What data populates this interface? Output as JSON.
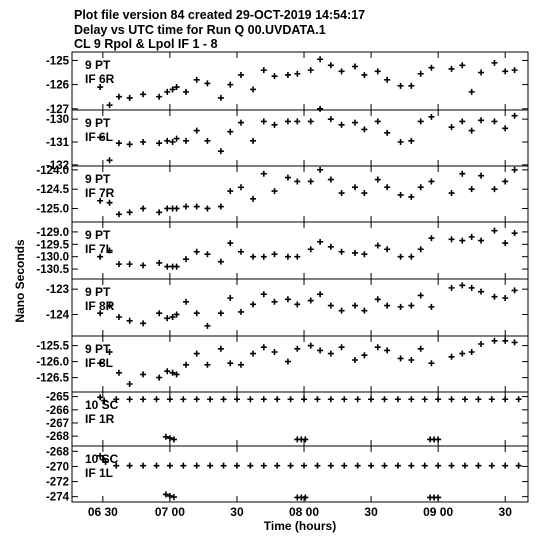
{
  "header": {
    "line1": "Plot file version 84  created 29-OCT-2019 14:54:17",
    "line2": "Delay vs UTC time for Run Q 00.UVDATA.1",
    "line3": "CL 9  Rpol & Lpol  IF 1 - 8"
  },
  "chart_data": {
    "type": "scatter",
    "title": "Delay vs UTC time for Run Q 00.UVDATA.1",
    "xlabel": "Time (hours)",
    "ylabel": "Nano Seconds",
    "x_unit": "hours (UTC)",
    "xlim": [
      6.27,
      9.67
    ],
    "x_ticks": [
      6.5,
      7.0,
      7.5,
      8.0,
      8.5,
      9.0,
      9.5
    ],
    "x_tick_labels": [
      "06 30",
      "07 00",
      "30",
      "08 00",
      "30",
      "09 00",
      "30"
    ],
    "grid": false,
    "panels": [
      {
        "antenna": "9 PT",
        "if": "IF 6R",
        "ylim": [
          -127.05,
          -124.65
        ],
        "y_ticks": [
          -125,
          -126,
          -127
        ],
        "y_tick_labels": [
          "-125",
          "-126",
          "-127"
        ],
        "x": [
          6.48,
          6.55,
          6.62,
          6.7,
          6.8,
          6.92,
          6.98,
          7.02,
          7.05,
          7.12,
          7.2,
          7.28,
          7.38,
          7.45,
          7.53,
          7.62,
          7.7,
          7.78,
          7.88,
          7.95,
          8.05,
          8.12,
          8.2,
          8.28,
          8.38,
          8.45,
          8.55,
          8.62,
          8.72,
          8.8,
          8.87,
          8.95,
          9.1,
          9.18,
          9.25,
          9.32,
          9.42,
          9.5,
          9.57
        ],
        "y": [
          -126.1,
          -126.85,
          -126.5,
          -126.55,
          -126.4,
          -126.5,
          -126.3,
          -126.2,
          -126.1,
          -126.3,
          -125.8,
          -125.95,
          -126.55,
          -126.0,
          -125.6,
          -126.2,
          -125.4,
          -125.65,
          -125.6,
          -125.55,
          -125.4,
          -124.95,
          -125.2,
          -125.45,
          -125.25,
          -125.6,
          -125.45,
          -125.8,
          -126.05,
          -126.05,
          -125.55,
          -125.3,
          -125.35,
          -125.2,
          -126.3,
          -125.5,
          -125.1,
          -125.45,
          -125.4
        ]
      },
      {
        "antenna": "9 PT",
        "if": "IF 6L",
        "ylim": [
          -132.05,
          -129.6
        ],
        "y_ticks": [
          -130,
          -131,
          -132
        ],
        "y_tick_labels": [
          "-130",
          "-131",
          "-132"
        ],
        "x": [
          6.48,
          6.55,
          6.62,
          6.7,
          6.8,
          6.92,
          6.98,
          7.02,
          7.05,
          7.12,
          7.2,
          7.28,
          7.38,
          7.45,
          7.53,
          7.62,
          7.7,
          7.78,
          7.88,
          7.95,
          8.05,
          8.12,
          8.2,
          8.28,
          8.38,
          8.45,
          8.55,
          8.62,
          8.72,
          8.8,
          8.87,
          8.95,
          9.1,
          9.18,
          9.25,
          9.32,
          9.42,
          9.5,
          9.57
        ],
        "y": [
          -130.8,
          -131.8,
          -131.05,
          -131.1,
          -131.0,
          -131.05,
          -130.95,
          -131.0,
          -130.85,
          -130.95,
          -130.5,
          -130.95,
          -131.4,
          -130.55,
          -130.15,
          -130.95,
          -130.1,
          -130.25,
          -130.1,
          -130.1,
          -130.1,
          -129.55,
          -130.0,
          -130.25,
          -130.15,
          -130.45,
          -130.1,
          -130.6,
          -131.0,
          -130.95,
          -130.1,
          -129.9,
          -130.35,
          -130.1,
          -130.5,
          -130.05,
          -130.1,
          -130.4,
          -129.85
        ]
      },
      {
        "antenna": "9 PT",
        "if": "IF 7R",
        "ylim": [
          -125.35,
          -123.9
        ],
        "y_ticks": [
          -124.0,
          -124.5,
          -125.0
        ],
        "y_tick_labels": [
          "-124.0",
          "-124.5",
          "-125.0"
        ],
        "x": [
          6.48,
          6.55,
          6.62,
          6.7,
          6.8,
          6.92,
          6.98,
          7.02,
          7.05,
          7.12,
          7.2,
          7.28,
          7.38,
          7.45,
          7.53,
          7.62,
          7.7,
          7.78,
          7.88,
          7.95,
          8.05,
          8.12,
          8.2,
          8.28,
          8.38,
          8.45,
          8.55,
          8.62,
          8.72,
          8.8,
          8.87,
          8.95,
          9.1,
          9.18,
          9.25,
          9.32,
          9.42,
          9.5,
          9.57
        ],
        "y": [
          -124.8,
          -124.85,
          -125.15,
          -125.1,
          -125.0,
          -125.1,
          -125.0,
          -125.0,
          -125.0,
          -124.95,
          -124.95,
          -125.0,
          -124.95,
          -124.55,
          -124.45,
          -124.75,
          -124.1,
          -124.55,
          -124.2,
          -124.3,
          -124.3,
          -124.0,
          -124.25,
          -124.6,
          -124.45,
          -124.6,
          -124.25,
          -124.45,
          -124.65,
          -124.7,
          -124.45,
          -124.3,
          -124.6,
          -124.1,
          -124.5,
          -124.15,
          -124.5,
          -124.3,
          -124.0
        ]
      },
      {
        "antenna": "9 PT",
        "if": "IF 7L",
        "ylim": [
          -130.9,
          -128.6
        ],
        "y_ticks": [
          -129.0,
          -129.5,
          -130.0,
          -130.5
        ],
        "y_tick_labels": [
          "-129.0",
          "-129.5",
          "-130.0",
          "-130.5"
        ],
        "x": [
          6.48,
          6.55,
          6.62,
          6.7,
          6.8,
          6.92,
          6.98,
          7.02,
          7.05,
          7.12,
          7.2,
          7.28,
          7.38,
          7.45,
          7.53,
          7.62,
          7.7,
          7.78,
          7.88,
          7.95,
          8.05,
          8.12,
          8.2,
          8.28,
          8.38,
          8.45,
          8.55,
          8.62,
          8.72,
          8.8,
          8.87,
          8.95,
          9.1,
          9.18,
          9.25,
          9.32,
          9.42,
          9.5,
          9.57
        ],
        "y": [
          -130.0,
          -129.75,
          -130.3,
          -130.3,
          -130.35,
          -130.25,
          -130.4,
          -130.4,
          -130.4,
          -130.1,
          -129.8,
          -129.9,
          -130.2,
          -129.45,
          -129.8,
          -130.0,
          -130.0,
          -129.9,
          -130.0,
          -130.0,
          -129.7,
          -129.4,
          -129.6,
          -129.8,
          -129.85,
          -129.9,
          -129.55,
          -129.7,
          -130.0,
          -130.0,
          -129.7,
          -129.25,
          -129.3,
          -129.35,
          -129.2,
          -129.35,
          -128.95,
          -129.45,
          -129.05
        ]
      },
      {
        "antenna": "9 PT",
        "if": "IF 8R",
        "ylim": [
          -124.85,
          -122.6
        ],
        "y_ticks": [
          -123,
          -124
        ],
        "y_tick_labels": [
          "-123",
          "-124"
        ],
        "x": [
          6.48,
          6.55,
          6.62,
          6.7,
          6.8,
          6.92,
          6.98,
          7.02,
          7.05,
          7.12,
          7.2,
          7.28,
          7.38,
          7.45,
          7.53,
          7.62,
          7.7,
          7.78,
          7.88,
          7.95,
          8.05,
          8.12,
          8.2,
          8.28,
          8.38,
          8.45,
          8.55,
          8.62,
          8.72,
          8.8,
          8.87,
          8.95,
          9.1,
          9.18,
          9.25,
          9.32,
          9.42,
          9.5,
          9.57
        ],
        "y": [
          -123.95,
          -123.65,
          -124.1,
          -124.25,
          -124.35,
          -123.95,
          -124.15,
          -124.1,
          -124.0,
          -123.5,
          -123.95,
          -124.45,
          -123.95,
          -123.35,
          -123.9,
          -123.6,
          -123.2,
          -123.5,
          -123.4,
          -123.6,
          -123.45,
          -123.2,
          -123.65,
          -123.85,
          -123.65,
          -123.85,
          -123.4,
          -123.65,
          -123.7,
          -123.65,
          -123.25,
          -123.7,
          -122.95,
          -122.85,
          -122.95,
          -123.1,
          -123.3,
          -123.35,
          -123.05
        ]
      },
      {
        "antenna": "9 PT",
        "if": "IF 8L",
        "ylim": [
          -126.95,
          -125.2
        ],
        "y_ticks": [
          -125.5,
          -126.0,
          -126.5
        ],
        "y_tick_labels": [
          "-125.5",
          "-126.0",
          "-126.5"
        ],
        "x": [
          6.48,
          6.55,
          6.62,
          6.7,
          6.8,
          6.92,
          6.98,
          7.02,
          7.05,
          7.12,
          7.2,
          7.28,
          7.38,
          7.45,
          7.53,
          7.62,
          7.7,
          7.78,
          7.88,
          7.95,
          8.05,
          8.12,
          8.2,
          8.28,
          8.38,
          8.45,
          8.55,
          8.62,
          8.72,
          8.8,
          8.87,
          8.95,
          9.1,
          9.18,
          9.25,
          9.32,
          9.42,
          9.5,
          9.57
        ],
        "y": [
          -126.05,
          -125.7,
          -126.35,
          -126.7,
          -126.4,
          -126.5,
          -126.3,
          -126.35,
          -126.4,
          -126.1,
          -125.75,
          -126.1,
          -125.6,
          -126.05,
          -126.1,
          -125.75,
          -125.55,
          -125.7,
          -126.0,
          -125.6,
          -125.5,
          -125.65,
          -125.75,
          -125.55,
          -125.95,
          -125.8,
          -125.55,
          -125.65,
          -125.9,
          -125.95,
          -125.6,
          -126.05,
          -125.85,
          -125.75,
          -125.7,
          -125.45,
          -125.35,
          -125.35,
          -125.4
        ]
      },
      {
        "antenna": "10 SC",
        "if": "IF 1R",
        "ylim": [
          -268.75,
          -264.65
        ],
        "y_ticks": [
          -265,
          -266,
          -267,
          -268
        ],
        "y_tick_labels": [
          "-265",
          "-266",
          "-267",
          "-268"
        ],
        "x": [
          6.48,
          6.51,
          6.6,
          6.7,
          6.8,
          6.9,
          7.0,
          7.1,
          7.2,
          7.3,
          7.4,
          7.5,
          7.6,
          7.7,
          7.8,
          7.9,
          8.0,
          8.1,
          8.2,
          8.3,
          8.4,
          8.5,
          8.6,
          8.7,
          8.8,
          8.9,
          9.0,
          9.1,
          9.2,
          9.3,
          9.4,
          9.5,
          9.6,
          6.97,
          7.0,
          7.03,
          7.95,
          7.98,
          8.01,
          8.94,
          8.97,
          9.0
        ],
        "y": [
          -265.05,
          -265.3,
          -265.2,
          -265.2,
          -265.2,
          -265.2,
          -265.2,
          -265.2,
          -265.2,
          -265.2,
          -265.2,
          -265.2,
          -265.2,
          -265.2,
          -265.2,
          -265.2,
          -265.2,
          -265.2,
          -265.2,
          -265.2,
          -265.2,
          -265.2,
          -265.2,
          -265.2,
          -265.2,
          -265.2,
          -265.2,
          -265.2,
          -265.2,
          -265.2,
          -265.2,
          -265.2,
          -265.2,
          -268.05,
          -268.15,
          -268.25,
          -268.25,
          -268.25,
          -268.25,
          -268.25,
          -268.25,
          -268.25
        ]
      },
      {
        "antenna": "10 SC",
        "if": "IF 1L",
        "ylim": [
          -274.7,
          -267.3
        ],
        "y_ticks": [
          -268,
          -270,
          -272,
          -274
        ],
        "y_tick_labels": [
          "-268",
          "-270",
          "-272",
          "-274"
        ],
        "x": [
          6.48,
          6.5,
          6.52,
          6.6,
          6.7,
          6.8,
          6.9,
          7.0,
          7.1,
          7.2,
          7.3,
          7.4,
          7.5,
          7.6,
          7.7,
          7.8,
          7.9,
          8.0,
          8.1,
          8.2,
          8.3,
          8.4,
          8.5,
          8.6,
          8.7,
          8.8,
          8.9,
          9.0,
          9.1,
          9.2,
          9.3,
          9.4,
          9.5,
          9.6,
          6.97,
          7.0,
          7.03,
          7.95,
          7.98,
          8.01,
          8.94,
          8.97,
          9.0
        ],
        "y": [
          -268.6,
          -269.1,
          -269.4,
          -269.9,
          -269.9,
          -269.9,
          -269.9,
          -269.9,
          -269.9,
          -269.9,
          -269.9,
          -269.9,
          -269.9,
          -269.9,
          -269.9,
          -269.9,
          -269.9,
          -269.9,
          -269.9,
          -269.9,
          -269.9,
          -269.9,
          -269.9,
          -269.9,
          -269.9,
          -269.9,
          -269.9,
          -269.9,
          -269.9,
          -269.9,
          -269.9,
          -269.9,
          -269.9,
          -269.9,
          -273.7,
          -273.9,
          -274.05,
          -274.1,
          -274.1,
          -274.1,
          -274.1,
          -274.1,
          -274.1
        ]
      }
    ]
  }
}
